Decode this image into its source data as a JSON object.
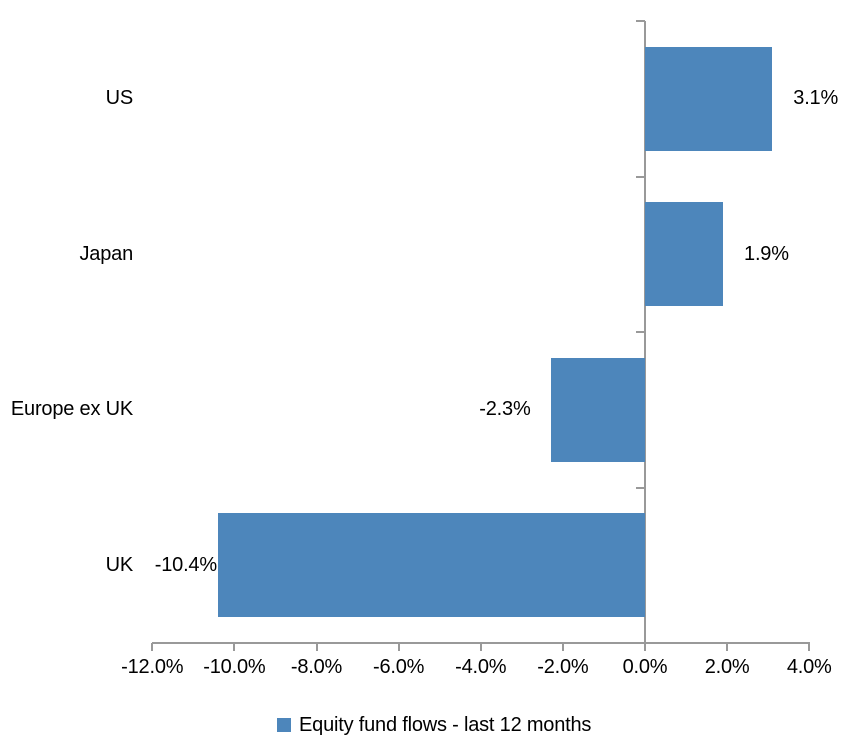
{
  "chart_data": {
    "type": "bar",
    "orientation": "horizontal",
    "title": "",
    "series_name": "Equity fund flows - last 12 months",
    "categories": [
      "US",
      "Japan",
      "Europe ex UK",
      "UK"
    ],
    "values": [
      3.1,
      1.9,
      -2.3,
      -10.4
    ],
    "data_labels": [
      "3.1%",
      "1.9%",
      "-2.3%",
      "-10.4%"
    ],
    "xlabel": "",
    "ylabel": "",
    "xlim": [
      -12,
      4
    ],
    "x_tick_values": [
      -12,
      -10,
      -8,
      -6,
      -4,
      -2,
      0,
      2,
      4
    ],
    "x_tick_labels": [
      "-12.0%",
      "-10.0%",
      "-8.0%",
      "-6.0%",
      "-4.0%",
      "-2.0%",
      "0.0%",
      "2.0%",
      "4.0%"
    ],
    "grid": false,
    "legend_position": "bottom",
    "colors": {
      "bar": "#4D86BB",
      "axis": "#999999",
      "text": "#000000",
      "background": "#FFFFFF"
    }
  }
}
